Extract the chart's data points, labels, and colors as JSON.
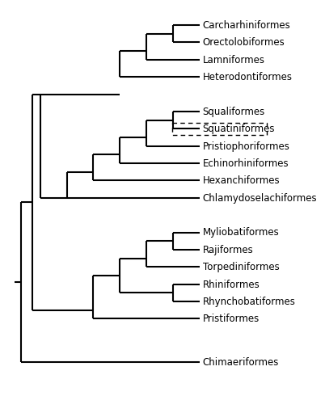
{
  "background_color": "#ffffff",
  "line_color": "#000000",
  "line_width": 1.5,
  "font_size": 8.5,
  "leaf_y": {
    "Carcharhiniformes": 1.0,
    "Orectolobiformes": 2.0,
    "Lamniformes": 3.0,
    "Heterodontiformes": 4.0,
    "Squaliformes": 6.0,
    "Squatiniformes": 7.0,
    "Pristiophoriformes": 8.0,
    "Echinorhiniformes": 9.0,
    "Hexanchiformes": 10.0,
    "Chlamydoselachiformes": 11.0,
    "Myliobatiformes": 13.0,
    "Rajiformes": 14.0,
    "Torpediniformes": 15.0,
    "Rhiniformes": 16.0,
    "Rhynchobatiformes": 17.0,
    "Pristiformes": 18.0,
    "Chimaeriformes": 20.5
  },
  "tip_x": 6.0,
  "xlim": [
    -1.2,
    9.8
  ],
  "ylim": [
    22.0,
    0.0
  ],
  "root_x": -0.7,
  "dotted_taxon": "Squatiniformes"
}
